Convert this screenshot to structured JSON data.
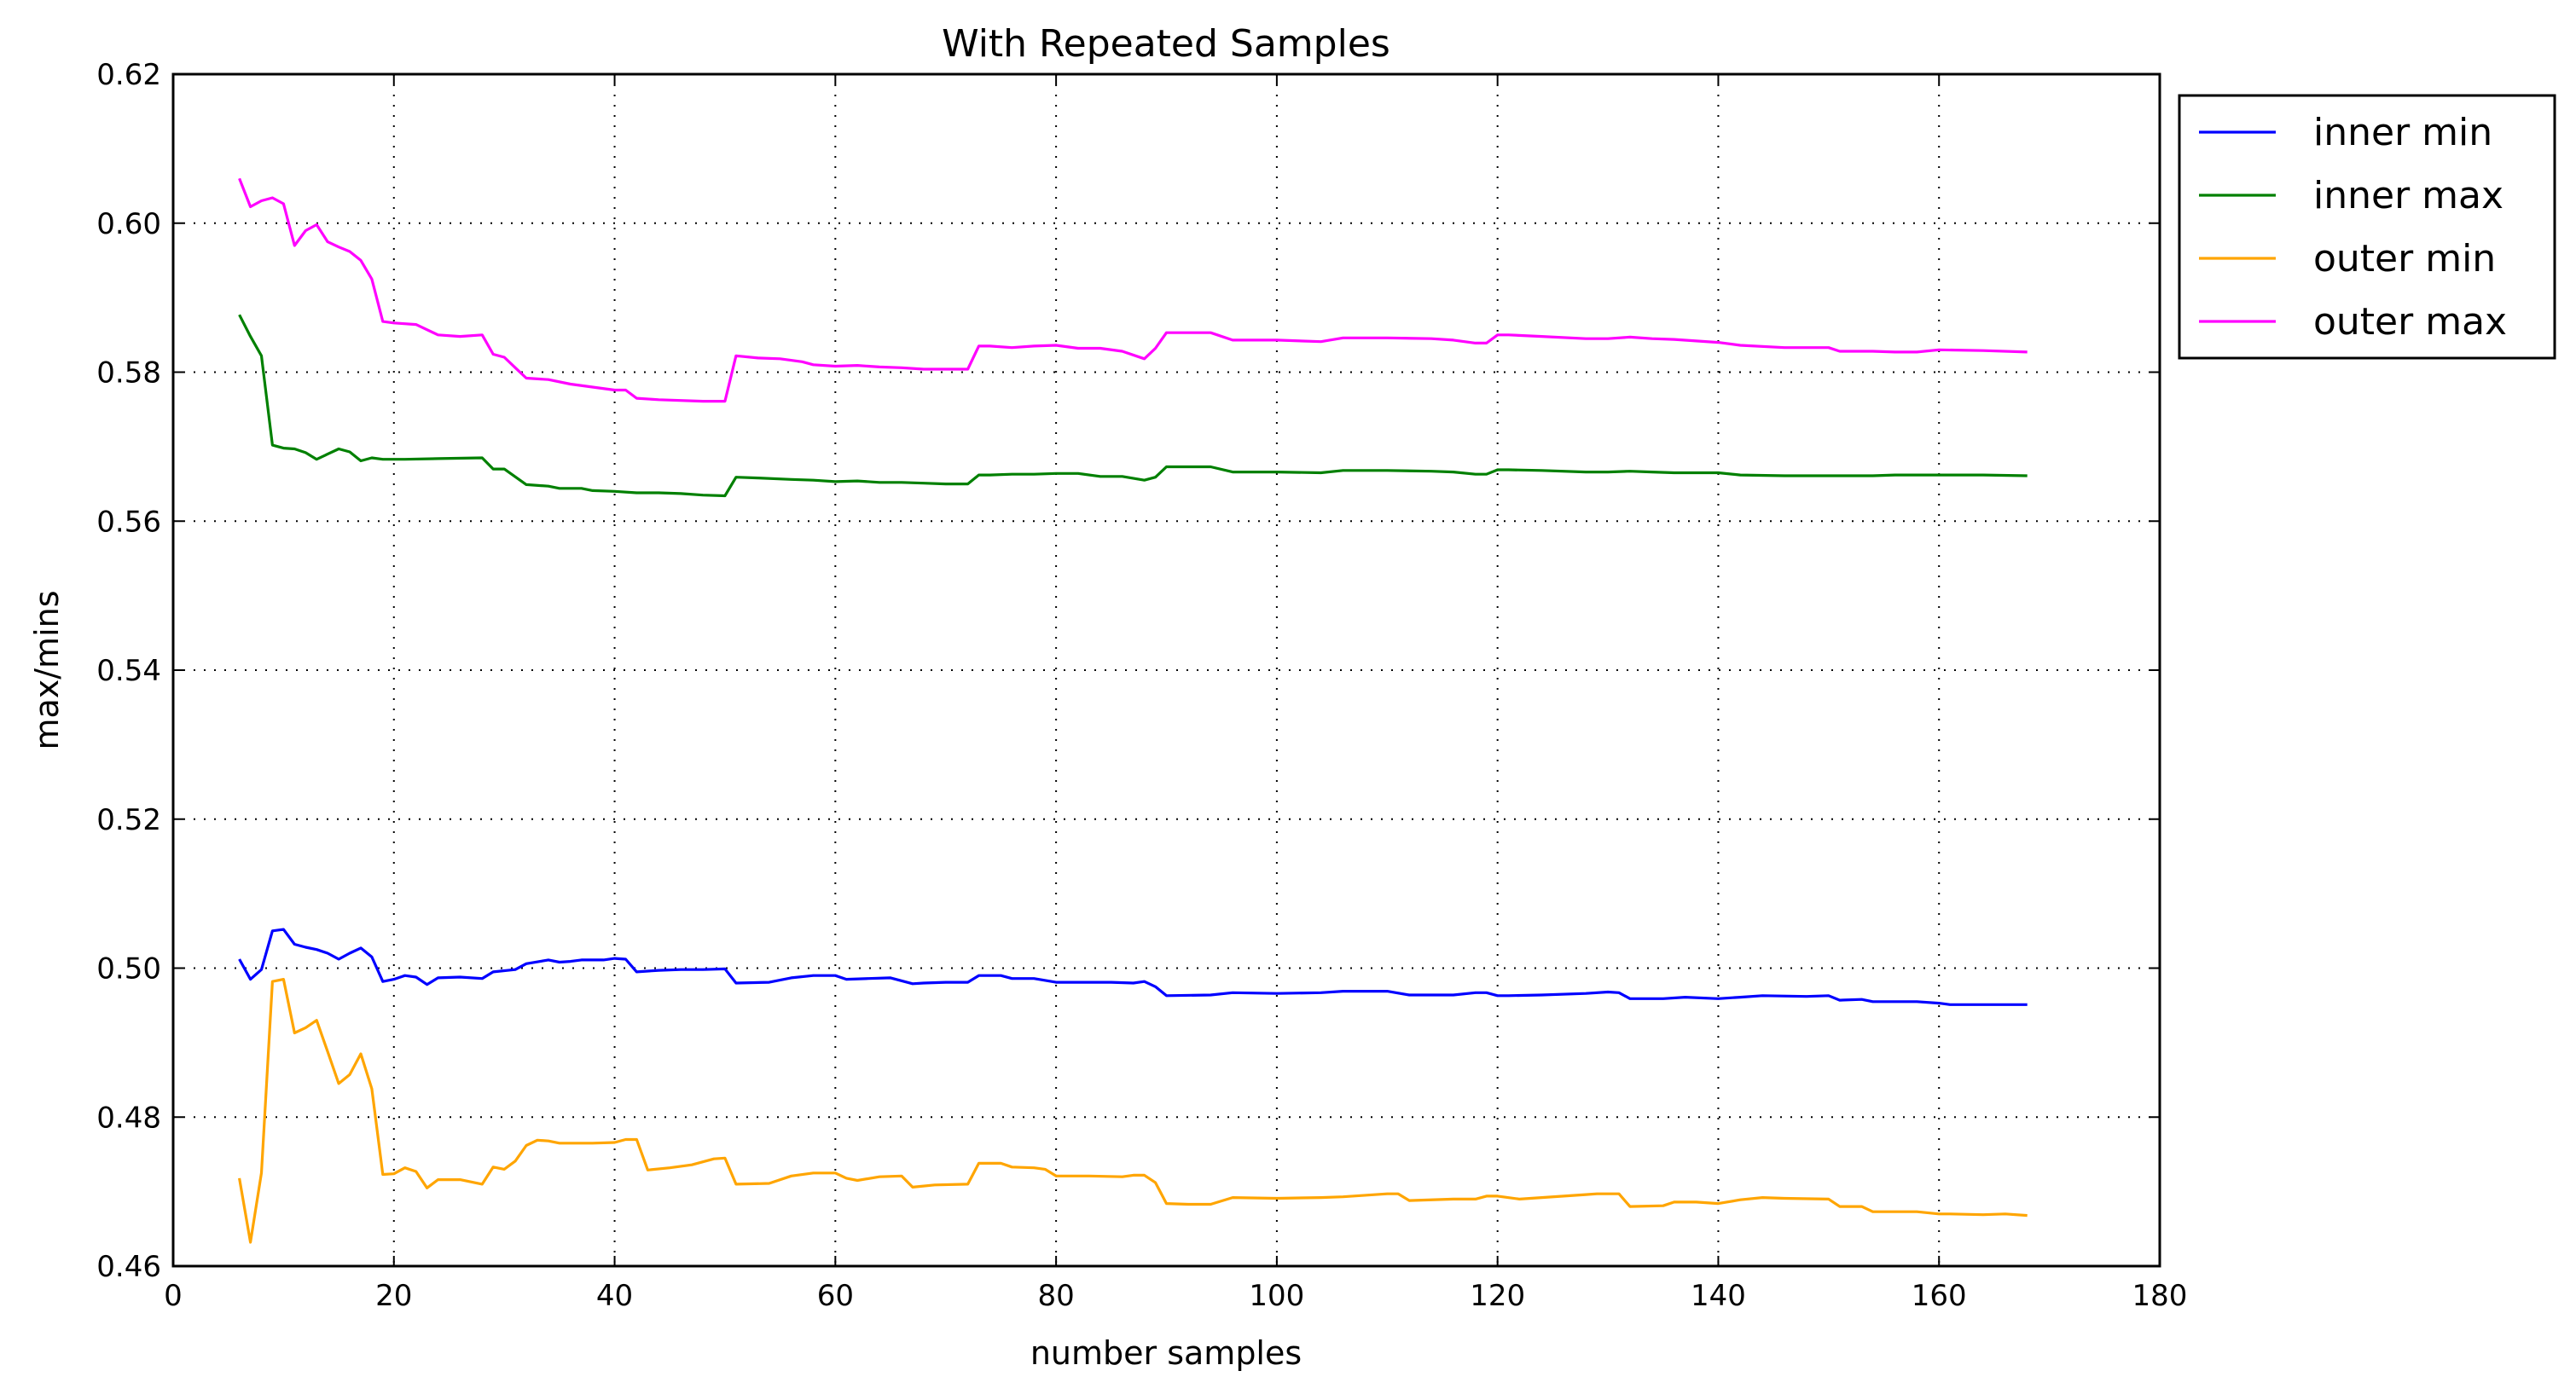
{
  "chart_data": {
    "type": "line",
    "title": "With Repeated Samples",
    "xlabel": "number samples",
    "ylabel": "max/mins",
    "xlim": [
      0,
      180
    ],
    "ylim": [
      0.46,
      0.62
    ],
    "xticks": [
      0,
      20,
      40,
      60,
      80,
      100,
      120,
      140,
      160,
      180
    ],
    "yticks": [
      0.46,
      0.48,
      0.5,
      0.52,
      0.54,
      0.56,
      0.58,
      0.6,
      0.62
    ],
    "xtick_labels": [
      "0",
      "20",
      "40",
      "60",
      "80",
      "100",
      "120",
      "140",
      "160",
      "180"
    ],
    "ytick_labels": [
      "0.46",
      "0.48",
      "0.50",
      "0.52",
      "0.54",
      "0.56",
      "0.58",
      "0.60",
      "0.62"
    ],
    "grid": true,
    "legend_position": "outside-top-right",
    "series": [
      {
        "name": "inner min",
        "color": "#0000ff",
        "x": [
          6,
          7,
          8,
          9,
          10,
          11,
          12,
          13,
          14,
          15,
          16,
          17,
          18,
          19,
          20,
          21,
          22,
          23,
          24,
          26,
          28,
          29,
          31,
          32,
          34,
          35,
          36,
          37,
          39,
          40,
          41,
          42,
          44,
          46,
          48,
          50,
          51,
          54,
          56,
          58,
          60,
          61,
          63,
          65,
          67,
          68,
          70,
          72,
          73,
          75,
          76,
          78,
          80,
          81,
          85,
          87,
          88,
          89,
          90,
          94,
          96,
          100,
          104,
          106,
          110,
          112,
          116,
          118,
          119,
          120,
          121,
          124,
          128,
          130,
          131,
          132,
          135,
          137,
          140,
          142,
          144,
          148,
          150,
          151,
          153,
          154,
          158,
          160,
          161,
          164,
          168
        ],
        "y": [
          0.5012,
          0.4985,
          0.4998,
          0.505,
          0.5052,
          0.5032,
          0.5028,
          0.5025,
          0.502,
          0.5012,
          0.502,
          0.5027,
          0.5015,
          0.4982,
          0.4985,
          0.499,
          0.4988,
          0.4978,
          0.4987,
          0.4988,
          0.4986,
          0.4995,
          0.4998,
          0.5006,
          0.5011,
          0.5008,
          0.5009,
          0.5011,
          0.5011,
          0.5013,
          0.5012,
          0.4995,
          0.4997,
          0.4998,
          0.4998,
          0.4999,
          0.498,
          0.4981,
          0.4987,
          0.499,
          0.499,
          0.4985,
          0.4986,
          0.4987,
          0.4979,
          0.498,
          0.4981,
          0.4981,
          0.499,
          0.499,
          0.4986,
          0.4986,
          0.4981,
          0.4981,
          0.4981,
          0.498,
          0.4982,
          0.4975,
          0.4963,
          0.4964,
          0.4967,
          0.4966,
          0.4967,
          0.4969,
          0.4969,
          0.4964,
          0.4964,
          0.4967,
          0.4967,
          0.4963,
          0.4963,
          0.4964,
          0.4966,
          0.4968,
          0.4967,
          0.4959,
          0.4959,
          0.4961,
          0.4959,
          0.4961,
          0.4963,
          0.4962,
          0.4963,
          0.4957,
          0.4958,
          0.4955,
          0.4955,
          0.4953,
          0.4951,
          0.4951,
          0.4951
        ]
      },
      {
        "name": "inner max",
        "color": "#008000",
        "x": [
          6,
          7,
          8,
          9,
          10,
          11,
          12,
          13,
          14,
          15,
          16,
          17,
          18,
          19,
          20,
          21,
          24,
          28,
          29,
          30,
          32,
          34,
          35,
          36,
          37,
          38,
          40,
          42,
          44,
          46,
          48,
          50,
          51,
          53,
          56,
          58,
          60,
          62,
          64,
          66,
          68,
          70,
          72,
          73,
          74,
          76,
          78,
          80,
          82,
          84,
          86,
          88,
          89,
          90,
          92,
          94,
          96,
          98,
          100,
          104,
          106,
          110,
          114,
          116,
          118,
          119,
          120,
          121,
          124,
          128,
          130,
          132,
          134,
          136,
          140,
          142,
          146,
          150,
          154,
          156,
          160,
          164,
          168
        ],
        "y": [
          0.5877,
          0.5848,
          0.5822,
          0.5702,
          0.5698,
          0.5697,
          0.5692,
          0.5683,
          0.569,
          0.5697,
          0.5693,
          0.5681,
          0.5685,
          0.5683,
          0.5683,
          0.5683,
          0.5684,
          0.5685,
          0.567,
          0.567,
          0.5649,
          0.5647,
          0.5644,
          0.5644,
          0.5644,
          0.5641,
          0.564,
          0.5638,
          0.5638,
          0.5637,
          0.5635,
          0.5634,
          0.5659,
          0.5658,
          0.5656,
          0.5655,
          0.5653,
          0.5654,
          0.5652,
          0.5652,
          0.5651,
          0.565,
          0.565,
          0.5662,
          0.5662,
          0.5663,
          0.5663,
          0.5664,
          0.5664,
          0.566,
          0.566,
          0.5655,
          0.5659,
          0.5673,
          0.5673,
          0.5673,
          0.5666,
          0.5666,
          0.5666,
          0.5665,
          0.5668,
          0.5668,
          0.5667,
          0.5666,
          0.5663,
          0.5663,
          0.5669,
          0.5669,
          0.5668,
          0.5666,
          0.5666,
          0.5667,
          0.5666,
          0.5665,
          0.5665,
          0.5662,
          0.5661,
          0.5661,
          0.5661,
          0.5662,
          0.5662,
          0.5662,
          0.5661
        ]
      },
      {
        "name": "outer min",
        "color": "#ffa500",
        "x": [
          6,
          7,
          8,
          9,
          10,
          11,
          12,
          13,
          14,
          15,
          16,
          17,
          18,
          19,
          20,
          21,
          22,
          23,
          24,
          26,
          28,
          29,
          30,
          31,
          32,
          33,
          34,
          35,
          36,
          38,
          40,
          41,
          42,
          43,
          45,
          47,
          49,
          50,
          51,
          54,
          56,
          58,
          60,
          61,
          62,
          64,
          66,
          67,
          69,
          72,
          73,
          75,
          76,
          78,
          79,
          80,
          83,
          86,
          87,
          88,
          89,
          90,
          92,
          94,
          96,
          100,
          104,
          106,
          110,
          111,
          112,
          116,
          118,
          119,
          120,
          122,
          124,
          126,
          128,
          129,
          131,
          132,
          135,
          136,
          138,
          140,
          142,
          144,
          146,
          150,
          151,
          153,
          154,
          158,
          160,
          161,
          164,
          166,
          168
        ],
        "y": [
          0.4718,
          0.4632,
          0.4725,
          0.4982,
          0.4985,
          0.4913,
          0.492,
          0.493,
          0.4888,
          0.4845,
          0.4857,
          0.4885,
          0.4838,
          0.4723,
          0.4724,
          0.4732,
          0.4727,
          0.4705,
          0.4716,
          0.4716,
          0.471,
          0.4733,
          0.473,
          0.4741,
          0.4762,
          0.4769,
          0.4768,
          0.4765,
          0.4765,
          0.4765,
          0.4766,
          0.477,
          0.477,
          0.4729,
          0.4732,
          0.4736,
          0.4744,
          0.4745,
          0.471,
          0.4711,
          0.4721,
          0.4725,
          0.4725,
          0.4718,
          0.4715,
          0.472,
          0.4721,
          0.4706,
          0.4709,
          0.471,
          0.4738,
          0.4738,
          0.4733,
          0.4732,
          0.473,
          0.4721,
          0.4721,
          0.472,
          0.4722,
          0.4722,
          0.4712,
          0.4684,
          0.4683,
          0.4683,
          0.4692,
          0.4691,
          0.4692,
          0.4693,
          0.4697,
          0.4697,
          0.4688,
          0.469,
          0.469,
          0.4694,
          0.4694,
          0.469,
          0.4692,
          0.4694,
          0.4696,
          0.4697,
          0.4697,
          0.468,
          0.4681,
          0.4686,
          0.4686,
          0.4684,
          0.4689,
          0.4692,
          0.4691,
          0.469,
          0.468,
          0.468,
          0.4673,
          0.4673,
          0.467,
          0.467,
          0.4669,
          0.467,
          0.4668
        ]
      },
      {
        "name": "outer max",
        "color": "#ff00ff",
        "x": [
          6,
          7,
          8,
          9,
          10,
          11,
          12,
          13,
          14,
          15,
          16,
          17,
          18,
          19,
          20,
          22,
          24,
          26,
          28,
          29,
          30,
          31,
          32,
          34,
          36,
          38,
          40,
          41,
          42,
          44,
          48,
          50,
          51,
          53,
          55,
          57,
          58,
          60,
          62,
          64,
          66,
          68,
          72,
          73,
          74,
          76,
          78,
          80,
          82,
          84,
          86,
          88,
          89,
          90,
          92,
          94,
          96,
          98,
          100,
          104,
          106,
          110,
          114,
          116,
          118,
          119,
          120,
          121,
          124,
          128,
          130,
          132,
          134,
          136,
          140,
          142,
          146,
          150,
          151,
          154,
          156,
          158,
          160,
          164,
          168
        ],
        "y": [
          0.606,
          0.6022,
          0.603,
          0.6034,
          0.6026,
          0.597,
          0.599,
          0.5998,
          0.5975,
          0.5968,
          0.5962,
          0.595,
          0.5925,
          0.5868,
          0.5866,
          0.5864,
          0.585,
          0.5848,
          0.585,
          0.5824,
          0.582,
          0.5806,
          0.5792,
          0.579,
          0.5784,
          0.578,
          0.5776,
          0.5776,
          0.5765,
          0.5763,
          0.5761,
          0.5761,
          0.5822,
          0.5819,
          0.5818,
          0.5814,
          0.581,
          0.5808,
          0.5809,
          0.5807,
          0.5806,
          0.5804,
          0.5804,
          0.5835,
          0.5835,
          0.5833,
          0.5835,
          0.5836,
          0.5832,
          0.5832,
          0.5828,
          0.5818,
          0.5832,
          0.5853,
          0.5853,
          0.5853,
          0.5843,
          0.5843,
          0.5843,
          0.5841,
          0.5846,
          0.5846,
          0.5845,
          0.5843,
          0.5839,
          0.5839,
          0.585,
          0.585,
          0.5848,
          0.5845,
          0.5845,
          0.5847,
          0.5845,
          0.5844,
          0.584,
          0.5836,
          0.5833,
          0.5833,
          0.5828,
          0.5828,
          0.5827,
          0.5827,
          0.583,
          0.5829,
          0.5827
        ]
      }
    ]
  }
}
